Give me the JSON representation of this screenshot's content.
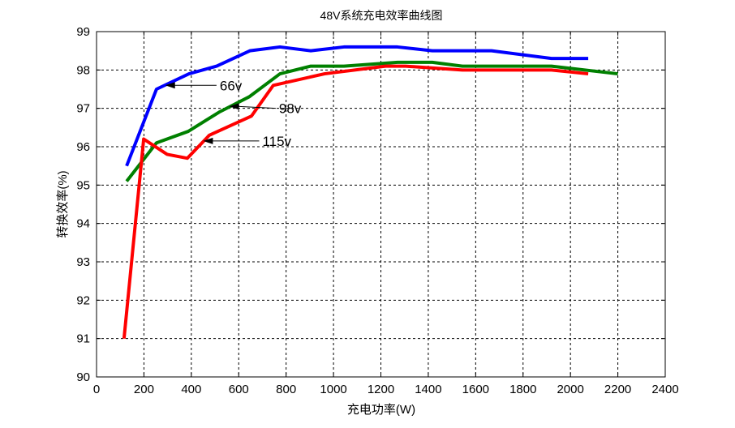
{
  "chart_data": {
    "type": "line",
    "title": "48V系统充电效率曲线图",
    "xlabel": "充电功率(W)",
    "ylabel": "转换效率(%)",
    "xlim": [
      0,
      2400
    ],
    "ylim": [
      90,
      99
    ],
    "xticks": [
      0,
      200,
      400,
      600,
      800,
      1000,
      1200,
      1400,
      1600,
      1800,
      2000,
      2200,
      2400
    ],
    "yticks": [
      90,
      91,
      92,
      93,
      94,
      95,
      96,
      97,
      98,
      99
    ],
    "grid": true,
    "series": [
      {
        "color": "#0000ff",
        "x": [
          127,
          253,
          390,
          507,
          647,
          774,
          904,
          1044,
          1270,
          1417,
          1667,
          1920,
          2075
        ],
        "y": [
          95.5,
          97.5,
          97.9,
          98.1,
          98.5,
          98.6,
          98.5,
          98.6,
          98.6,
          98.5,
          98.5,
          98.3,
          98.3
        ]
      },
      {
        "color": "#008000",
        "x": [
          127,
          253,
          387,
          517,
          644,
          774,
          904,
          1044,
          1270,
          1417,
          1544,
          1920,
          2200
        ],
        "y": [
          95.1,
          96.1,
          96.4,
          96.9,
          97.3,
          97.9,
          98.1,
          98.1,
          98.2,
          98.2,
          98.1,
          98.1,
          97.9
        ]
      },
      {
        "color": "#ff0000",
        "x": [
          116,
          199,
          298,
          383,
          476,
          654,
          746,
          962,
          1219,
          1304,
          1544,
          1920,
          2075
        ],
        "y": [
          91.0,
          96.2,
          95.8,
          95.7,
          96.3,
          96.8,
          97.6,
          97.9,
          98.1,
          98.1,
          98.0,
          98.0,
          97.9
        ]
      }
    ],
    "annotations": [
      {
        "text": "66v",
        "text_x": 520,
        "text_y": 97.6,
        "target_x": 290,
        "target_y": 97.6
      },
      {
        "text": "98v",
        "text_x": 770,
        "text_y": 97.0,
        "target_x": 560,
        "target_y": 97.05
      },
      {
        "text": "115v",
        "text_x": 700,
        "text_y": 96.15,
        "target_x": 450,
        "target_y": 96.15
      }
    ]
  }
}
